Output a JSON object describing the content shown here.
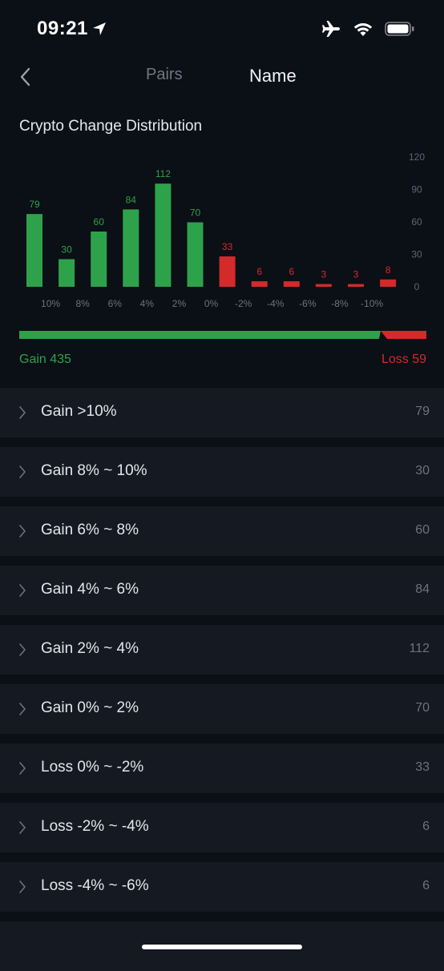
{
  "status_bar": {
    "time": "09:21"
  },
  "nav": {
    "tabs": [
      {
        "label": "Pairs",
        "active": false
      },
      {
        "label": "Name",
        "active": true
      }
    ]
  },
  "chart_title": "Crypto Change Distribution",
  "colors": {
    "gain": "#2ea24a",
    "loss": "#d42a2a",
    "background": "#0b0f16",
    "row_background": "#141922"
  },
  "chart_data": {
    "type": "bar",
    "title": "Crypto Change Distribution",
    "categories": [
      ">10%",
      "8%~10%",
      "6%~8%",
      "4%~6%",
      "2%~4%",
      "0%~2%",
      "0%~-2%",
      "-2%~-4%",
      "-4%~-6%",
      "-6%~-8%",
      "-8%~-10%",
      "<-10%"
    ],
    "values": [
      79,
      30,
      60,
      84,
      112,
      70,
      33,
      6,
      6,
      3,
      3,
      8
    ],
    "bar_colors": [
      "gain",
      "gain",
      "gain",
      "gain",
      "gain",
      "gain",
      "loss",
      "loss",
      "loss",
      "loss",
      "loss",
      "loss"
    ],
    "x_tick_labels": [
      "10%",
      "8%",
      "6%",
      "4%",
      "2%",
      "0%",
      "-2%",
      "-4%",
      "-6%",
      "-8%",
      "-10%"
    ],
    "y_ticks": [
      0,
      30,
      60,
      90,
      120
    ],
    "ylim": [
      0,
      120
    ],
    "y_axis_position": "right",
    "grid": false
  },
  "summary": {
    "gain_label": "Gain 435",
    "loss_label": "Loss 59",
    "gain": 435,
    "loss": 59
  },
  "rows": [
    {
      "label": "Gain >10%",
      "count": "79"
    },
    {
      "label": "Gain 8% ~ 10%",
      "count": "30"
    },
    {
      "label": "Gain 6% ~ 8%",
      "count": "60"
    },
    {
      "label": "Gain 4% ~ 6%",
      "count": "84"
    },
    {
      "label": "Gain 2% ~ 4%",
      "count": "112"
    },
    {
      "label": "Gain 0% ~ 2%",
      "count": "70"
    },
    {
      "label": "Loss 0% ~ -2%",
      "count": "33"
    },
    {
      "label": "Loss -2% ~ -4%",
      "count": "6"
    },
    {
      "label": "Loss -4% ~ -6%",
      "count": "6"
    }
  ]
}
